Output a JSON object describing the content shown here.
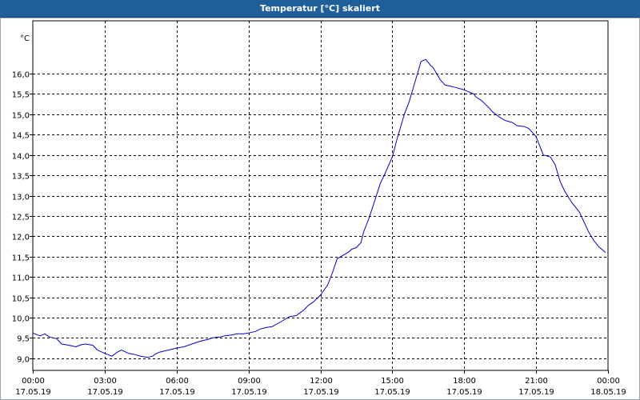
{
  "window": {
    "title": "Temperatur [°C] skaliert"
  },
  "colors": {
    "title_bar": "#1f5f99",
    "series": "#0000cc",
    "grid": "#000000"
  },
  "chart_data": {
    "type": "line",
    "title": "Temperatur [°C] skaliert",
    "ylabel": "°C",
    "xlabel": "",
    "ylim": [
      8.7,
      17.3
    ],
    "xlim": [
      "17.05.19 00:00",
      "18.05.19 00:00"
    ],
    "grid": true,
    "y_ticks": [
      "9,0",
      "9,5",
      "10,0",
      "10,5",
      "11,0",
      "11,5",
      "12,0",
      "12,5",
      "13,0",
      "13,5",
      "14,0",
      "14,5",
      "15,0",
      "15,5",
      "16,0"
    ],
    "y_tick_values": [
      9.0,
      9.5,
      10.0,
      10.5,
      11.0,
      11.5,
      12.0,
      12.5,
      13.0,
      13.5,
      14.0,
      14.5,
      15.0,
      15.5,
      16.0
    ],
    "x_ticks": [
      {
        "time": "00:00",
        "date": "17.05.19"
      },
      {
        "time": "03:00",
        "date": "17.05.19"
      },
      {
        "time": "06:00",
        "date": "17.05.19"
      },
      {
        "time": "09:00",
        "date": "17.05.19"
      },
      {
        "time": "12:00",
        "date": "17.05.19"
      },
      {
        "time": "15:00",
        "date": "17.05.19"
      },
      {
        "time": "18:00",
        "date": "17.05.19"
      },
      {
        "time": "21:00",
        "date": "17.05.19"
      },
      {
        "time": "00:00",
        "date": "18.05.19"
      }
    ],
    "x_tick_values": [
      0,
      3,
      6,
      9,
      12,
      15,
      18,
      21,
      24
    ],
    "series": [
      {
        "x": [
          0,
          0.3,
          0.5,
          0.7,
          1.0,
          1.2,
          1.5,
          1.8,
          2.0,
          2.2,
          2.5,
          2.7,
          3.0,
          3.3,
          3.5,
          3.7,
          4.0,
          4.2,
          4.5,
          4.8,
          5.0,
          5.1,
          5.3,
          5.5,
          5.8,
          6.0,
          6.3,
          6.5,
          6.8,
          7.0,
          7.3,
          7.5,
          7.8,
          8.0,
          8.3,
          8.5,
          8.8,
          9.0,
          9.3,
          9.5,
          9.7,
          10.0,
          10.3,
          10.5,
          10.7,
          11.0,
          11.3,
          11.5,
          11.7,
          12.0,
          12.3,
          12.5,
          12.7,
          13.0,
          13.2,
          13.3,
          13.5,
          13.7,
          13.8,
          14.0,
          14.2,
          14.5,
          14.7,
          15.0,
          15.2,
          15.5,
          15.7,
          16.0,
          16.2,
          16.4,
          16.6,
          16.7,
          16.8,
          17.0,
          17.2,
          17.5,
          17.7,
          18.0,
          18.2,
          18.4,
          18.5,
          18.7,
          19.0,
          19.2,
          19.5,
          19.7,
          20.0,
          20.2,
          20.5,
          20.7,
          21.0,
          21.2,
          21.3,
          21.6,
          21.8,
          22.0,
          22.2,
          22.5,
          22.8,
          23.0,
          23.2,
          23.4,
          23.6,
          23.9
        ],
        "y": [
          9.62,
          9.55,
          9.6,
          9.52,
          9.48,
          9.35,
          9.32,
          9.28,
          9.33,
          9.35,
          9.32,
          9.2,
          9.12,
          9.05,
          9.14,
          9.2,
          9.12,
          9.1,
          9.05,
          9.02,
          9.05,
          9.1,
          9.15,
          9.18,
          9.22,
          9.25,
          9.28,
          9.32,
          9.38,
          9.42,
          9.46,
          9.5,
          9.52,
          9.55,
          9.57,
          9.6,
          9.6,
          9.62,
          9.66,
          9.72,
          9.75,
          9.78,
          9.88,
          9.95,
          10.02,
          10.05,
          10.18,
          10.3,
          10.38,
          10.55,
          10.8,
          11.1,
          11.45,
          11.55,
          11.62,
          11.68,
          11.72,
          11.85,
          12.1,
          12.4,
          12.75,
          13.3,
          13.55,
          13.95,
          14.4,
          15.0,
          15.3,
          15.9,
          16.3,
          16.35,
          16.2,
          16.15,
          16.05,
          15.85,
          15.72,
          15.68,
          15.65,
          15.6,
          15.55,
          15.5,
          15.42,
          15.35,
          15.18,
          15.05,
          14.92,
          14.85,
          14.8,
          14.72,
          14.7,
          14.65,
          14.45,
          14.15,
          14.0,
          13.95,
          13.75,
          13.35,
          13.1,
          12.82,
          12.6,
          12.35,
          12.1,
          11.9,
          11.75,
          11.6
        ]
      }
    ]
  }
}
